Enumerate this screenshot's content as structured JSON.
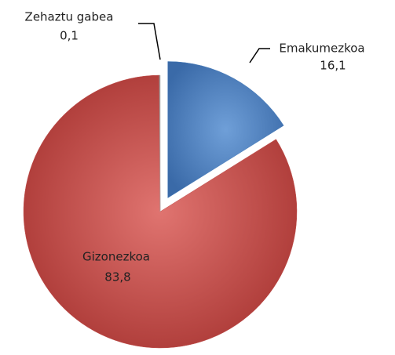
{
  "chart_data": {
    "type": "pie",
    "categories": [
      "Emakumezkoa",
      "Gizonezkoa",
      "Zehaztu gabea"
    ],
    "values": [
      16.1,
      83.8,
      0.1
    ],
    "value_labels": [
      "16,1",
      "83,8",
      "0,1"
    ],
    "colors": [
      "#4a7ebb",
      "#c0504d",
      "#a6a6a6"
    ],
    "exploded": [
      true,
      false,
      false
    ]
  }
}
